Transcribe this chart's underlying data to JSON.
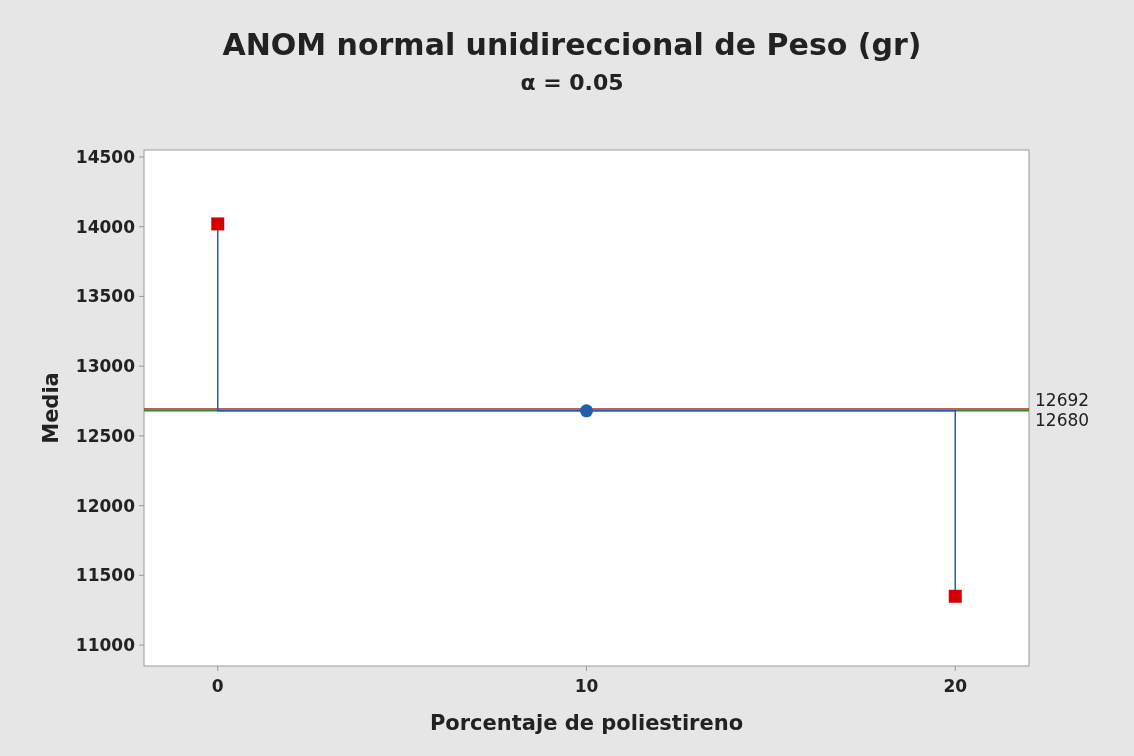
{
  "chart_data": {
    "type": "line",
    "title": "ANOM normal unidireccional de Peso (gr)",
    "subtitle": "α = 0.05",
    "xlabel": "Porcentaje de poliestireno",
    "ylabel": "Media",
    "series": [
      {
        "x": [
          0,
          0,
          20,
          20
        ],
        "values": [
          14020,
          12680,
          12680,
          11350
        ],
        "color": "#1f5fb0",
        "marker": "none"
      },
      {
        "type": "scatter",
        "x": [
          0,
          20
        ],
        "values": [
          14020,
          11350
        ],
        "color": "#d40000",
        "marker": "square"
      },
      {
        "type": "scatter",
        "x": [
          10
        ],
        "values": [
          12680
        ],
        "color": "#1f5fb0",
        "marker": "circle"
      }
    ],
    "xlim": [
      -2,
      22
    ],
    "xticks": [
      0,
      10,
      20
    ],
    "ylim": [
      10850,
      14550
    ],
    "yticks": [
      11000,
      11500,
      12000,
      12500,
      13000,
      13500,
      14000,
      14500
    ],
    "ref_lines": [
      {
        "axis": "y",
        "value": 12692,
        "label": "12692",
        "color": "#a52a2a"
      },
      {
        "axis": "y",
        "value": 12680,
        "label": "12680",
        "color": "#2e8b2e"
      }
    ]
  }
}
